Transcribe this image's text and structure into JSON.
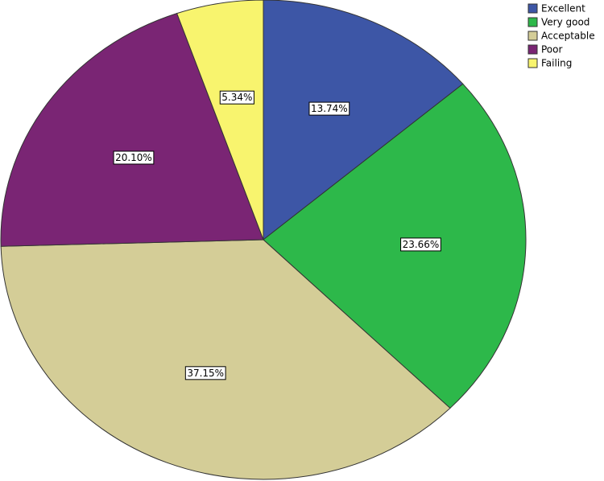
{
  "chart_data": {
    "type": "pie",
    "categories": [
      "Excellent",
      "Very good",
      "Acceptable",
      "Poor",
      "Failing"
    ],
    "values": [
      13.74,
      23.66,
      37.15,
      20.1,
      5.34
    ],
    "value_labels": [
      "13.74%",
      "23.66%",
      "37.15%",
      "20.10%",
      "5.34%"
    ],
    "colors": [
      "#3d56a6",
      "#2db84a",
      "#d4cd97",
      "#7a2574",
      "#f8f46e"
    ],
    "legend": "top-right"
  }
}
